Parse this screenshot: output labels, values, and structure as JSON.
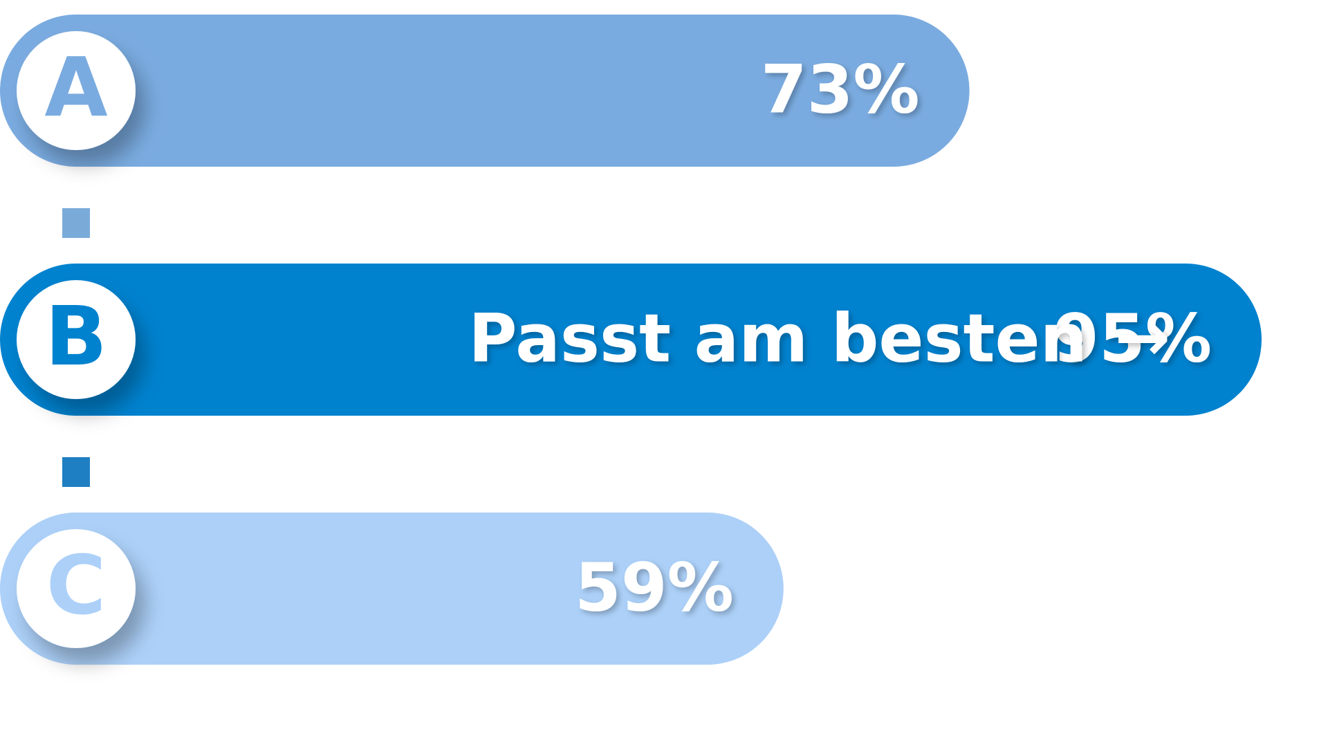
{
  "chart_data": {
    "type": "bar",
    "orientation": "horizontal",
    "categories": [
      "A",
      "B",
      "C"
    ],
    "values": [
      73,
      95,
      59
    ],
    "value_labels": [
      "73%",
      "95%",
      "59%"
    ],
    "highlight": {
      "category": "B",
      "label": "Passt am besten",
      "arrow": "→"
    },
    "colors": [
      "#7aabe0",
      "#0082cf",
      "#acd0f8"
    ],
    "connector_colors": [
      "#7aabd8",
      "#1f7fc3"
    ],
    "xlim": [
      0,
      100
    ],
    "grid": false,
    "legend": "none"
  }
}
